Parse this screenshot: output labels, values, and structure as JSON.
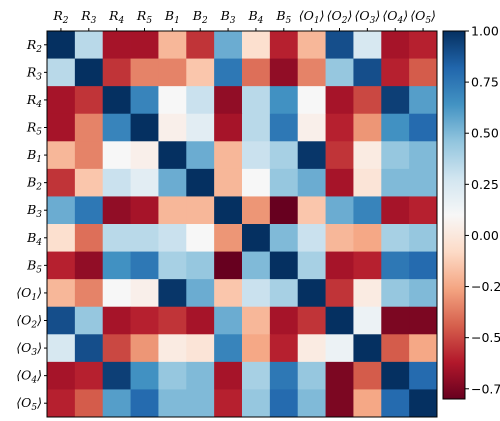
{
  "chart_data": {
    "type": "heatmap",
    "title": "",
    "row_labels": [
      "R2",
      "R3",
      "R4",
      "R5",
      "B1",
      "B2",
      "B3",
      "B4",
      "B5",
      "⟨O1⟩",
      "⟨O2⟩",
      "⟨O3⟩",
      "⟨O4⟩",
      "⟨O5⟩"
    ],
    "col_labels": [
      "R2",
      "R3",
      "R4",
      "R5",
      "B1",
      "B2",
      "B3",
      "B4",
      "B5",
      "⟨O1⟩",
      "⟨O2⟩",
      "⟨O3⟩",
      "⟨O4⟩",
      "⟨O5⟩"
    ],
    "label_parts": [
      {
        "base": "R",
        "sub": "2"
      },
      {
        "base": "R",
        "sub": "3"
      },
      {
        "base": "R",
        "sub": "4"
      },
      {
        "base": "R",
        "sub": "5"
      },
      {
        "base": "B",
        "sub": "1"
      },
      {
        "base": "B",
        "sub": "2"
      },
      {
        "base": "B",
        "sub": "3"
      },
      {
        "base": "B",
        "sub": "4"
      },
      {
        "base": "B",
        "sub": "5"
      },
      {
        "base": "⟨O",
        "sub": "1",
        "close": "⟩"
      },
      {
        "base": "⟨O",
        "sub": "2",
        "close": "⟩"
      },
      {
        "base": "⟨O",
        "sub": "3",
        "close": "⟩"
      },
      {
        "base": "⟨O",
        "sub": "4",
        "close": "⟩"
      },
      {
        "base": "⟨O",
        "sub": "5",
        "close": "⟩"
      }
    ],
    "colormap": "RdBu",
    "vmin": -0.8,
    "vmax": 1.0,
    "colorbar_ticks": [
      1.0,
      0.75,
      0.5,
      0.25,
      0.0,
      -0.25,
      -0.5,
      -0.75
    ],
    "colorbar_tick_labels": [
      "1.00",
      "0.75",
      "0.50",
      "0.25",
      "0.00",
      "−0.25",
      "−0.50",
      "−0.75"
    ],
    "values": [
      [
        1.0,
        0.35,
        -0.65,
        -0.65,
        -0.2,
        -0.55,
        0.55,
        -0.05,
        -0.6,
        -0.2,
        0.9,
        0.25,
        -0.65,
        -0.6
      ],
      [
        0.35,
        1.0,
        -0.55,
        -0.35,
        -0.35,
        -0.15,
        0.75,
        -0.4,
        -0.7,
        -0.35,
        0.45,
        0.9,
        -0.6,
        -0.45
      ],
      [
        -0.65,
        -0.55,
        1.0,
        0.7,
        0.1,
        0.3,
        -0.7,
        0.35,
        0.65,
        0.1,
        -0.65,
        -0.5,
        0.95,
        0.6
      ],
      [
        -0.65,
        -0.35,
        0.7,
        1.0,
        0.05,
        0.2,
        -0.65,
        0.35,
        0.75,
        0.05,
        -0.6,
        -0.3,
        0.65,
        0.8
      ],
      [
        -0.2,
        -0.35,
        0.1,
        0.05,
        1.0,
        0.55,
        -0.2,
        0.3,
        0.4,
        0.98,
        -0.55,
        0.02,
        0.45,
        0.5
      ],
      [
        -0.55,
        -0.15,
        0.3,
        0.2,
        0.55,
        1.0,
        -0.2,
        0.1,
        0.45,
        0.55,
        -0.65,
        -0.02,
        0.5,
        0.5
      ],
      [
        0.55,
        0.75,
        -0.7,
        -0.65,
        -0.2,
        -0.2,
        1.0,
        -0.3,
        -0.8,
        -0.15,
        0.55,
        0.7,
        -0.65,
        -0.6
      ],
      [
        -0.05,
        -0.4,
        0.35,
        0.35,
        0.3,
        0.1,
        -0.3,
        1.0,
        0.5,
        0.3,
        -0.2,
        -0.25,
        0.4,
        0.45
      ],
      [
        -0.6,
        -0.7,
        0.65,
        0.75,
        0.4,
        0.45,
        -0.8,
        0.5,
        1.0,
        0.4,
        -0.65,
        -0.6,
        0.75,
        0.8
      ],
      [
        -0.2,
        -0.35,
        0.1,
        0.05,
        0.98,
        0.55,
        -0.15,
        0.3,
        0.4,
        1.0,
        -0.55,
        0.02,
        0.45,
        0.5
      ],
      [
        0.9,
        0.45,
        -0.65,
        -0.6,
        -0.55,
        -0.65,
        0.55,
        -0.2,
        -0.65,
        -0.55,
        1.0,
        0.15,
        -0.75,
        -0.75
      ],
      [
        0.25,
        0.9,
        -0.5,
        -0.3,
        0.02,
        -0.02,
        0.7,
        -0.25,
        -0.6,
        0.02,
        0.15,
        1.0,
        -0.45,
        -0.25
      ],
      [
        -0.65,
        -0.6,
        0.95,
        0.65,
        0.45,
        0.5,
        -0.65,
        0.4,
        0.75,
        0.45,
        -0.75,
        -0.45,
        1.0,
        0.8
      ],
      [
        -0.6,
        -0.45,
        0.6,
        0.8,
        0.5,
        0.5,
        -0.6,
        0.45,
        0.8,
        0.5,
        -0.75,
        -0.25,
        0.8,
        1.0
      ]
    ]
  }
}
